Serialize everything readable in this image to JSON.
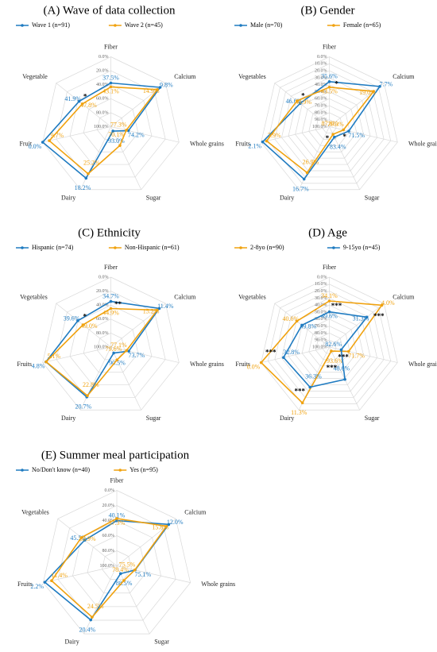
{
  "chart_data": [
    {
      "type": "radar",
      "title": "(A) Wave of data collection",
      "categories": [
        "Fiber",
        "Calcium",
        "Whole grains",
        "Sugar",
        "Dairy",
        "Fruit",
        "Vegetable"
      ],
      "ylim": [
        100,
        0
      ],
      "yticks": [
        {
          "value": 0,
          "label": "0.0%"
        },
        {
          "value": 20,
          "label": "20.0%"
        },
        {
          "value": 40,
          "label": "40.0%"
        },
        {
          "value": 60,
          "label": "60.0%"
        },
        {
          "value": 80,
          "label": "80.0%"
        },
        {
          "value": 100,
          "label": "100.0%"
        }
      ],
      "series": [
        {
          "name": "Wave 1 (n=91)",
          "color": "#1f7bc1",
          "values": [
            37.5,
            9.8,
            74.2,
            93.0,
            18.2,
            0.0,
            41.9
          ],
          "value_labels": [
            "37.5%",
            "9.8%",
            "74.2%",
            "93.0%",
            "18.2%",
            "0.0%",
            "41.9%"
          ]
        },
        {
          "name": "Wave 2 (n=45)",
          "color": "#f0a20f",
          "values": [
            43.1,
            14.9,
            77.3,
            70.1,
            25.2,
            9.7,
            47.8
          ],
          "value_labels": [
            "43.1%",
            "14.9%",
            "77.3%",
            "70.1%",
            "25.2%",
            "9.7%",
            "47.8%"
          ]
        }
      ],
      "significance": [
        null,
        null,
        null,
        null,
        null,
        null,
        "*"
      ]
    },
    {
      "type": "radar",
      "title": "(B) Gender",
      "categories": [
        "Fiber",
        "Calcium",
        "Whole grains",
        "Sugar",
        "Dairy",
        "Fruits",
        "Vegetables"
      ],
      "ylim": [
        100,
        0
      ],
      "yticks": [
        {
          "value": 0,
          "label": "0.0%"
        },
        {
          "value": 10,
          "label": "10.0%"
        },
        {
          "value": 20,
          "label": "20.0%"
        },
        {
          "value": 30,
          "label": "30.0%"
        },
        {
          "value": 40,
          "label": "40.0%"
        },
        {
          "value": 50,
          "label": "50.0%"
        },
        {
          "value": 60,
          "label": "60.0%"
        },
        {
          "value": 70,
          "label": "70.0%"
        },
        {
          "value": 80,
          "label": "80.0%"
        },
        {
          "value": 90,
          "label": "90.0%"
        },
        {
          "value": 100,
          "label": "100.0%"
        }
      ],
      "series": [
        {
          "name": "Male (n=70)",
          "color": "#1f7bc1",
          "values": [
            35.6,
            7.7,
            71.5,
            83.4,
            16.7,
            2.1,
            46.6
          ],
          "value_labels": [
            "35.6%",
            "7.7%",
            "71.5%",
            "83.4%",
            "16.7%",
            "2.1%",
            "46.6%"
          ]
        },
        {
          "name": "Female (n=65)",
          "color": "#f0a20f",
          "values": [
            43.5,
            19.0,
            79.3,
            87.8,
            26.9,
            7.9,
            40.9
          ],
          "value_labels": [
            "43.5%",
            "19.0%",
            "79.3%",
            "87.8%",
            "26.9%",
            "7.9%",
            "40.9%"
          ]
        }
      ],
      "significance": [
        "*",
        null,
        "*",
        "*",
        null,
        null,
        "*"
      ]
    },
    {
      "type": "radar",
      "title": "(C) Ethnicity",
      "categories": [
        "Fiber",
        "Calcium",
        "Whole grains",
        "Sugar",
        "Dairy",
        "Fruits",
        "Vegetables"
      ],
      "ylim": [
        100,
        0
      ],
      "yticks": [
        {
          "value": 0,
          "label": "0.0%"
        },
        {
          "value": 20,
          "label": "20.0%"
        },
        {
          "value": 40,
          "label": "40.0%"
        },
        {
          "value": 60,
          "label": "60.0%"
        },
        {
          "value": 80,
          "label": "80.0%"
        },
        {
          "value": 100,
          "label": "100.0%"
        }
      ],
      "series": [
        {
          "name": "Hispanic (n=74)",
          "color": "#1f7bc1",
          "values": [
            34.7,
            11.4,
            73.7,
            90.5,
            20.7,
            4.8,
            39.6
          ],
          "value_labels": [
            "34.7%",
            "11.4%",
            "73.7%",
            "90.5%",
            "20.7%",
            "4.8%",
            "39.6%"
          ]
        },
        {
          "name": "Non-Hispanic (n=61)",
          "color": "#f0a20f",
          "values": [
            44.9,
            15.2,
            77.1,
            79.6,
            22.8,
            5.1,
            49.0
          ],
          "value_labels": [
            "44.9%",
            "15.2%",
            "77.1%",
            "79.6%",
            "22.8%",
            "5.1%",
            "49.0%"
          ]
        }
      ],
      "significance": [
        "**",
        null,
        null,
        null,
        null,
        null,
        "*"
      ]
    },
    {
      "type": "radar",
      "title": "(D) Age",
      "categories": [
        "Fiber",
        "Calcium",
        "Whole grains",
        "Sugar",
        "Dairy",
        "Fruits",
        "Vegetables"
      ],
      "ylim": [
        100,
        0
      ],
      "yticks": [
        {
          "value": 0,
          "label": "0.0%"
        },
        {
          "value": 10,
          "label": "10.0%"
        },
        {
          "value": 20,
          "label": "20.0%"
        },
        {
          "value": 30,
          "label": "30.0%"
        },
        {
          "value": 40,
          "label": "40.0%"
        },
        {
          "value": 50,
          "label": "50.0%"
        },
        {
          "value": 60,
          "label": "60.0%"
        },
        {
          "value": 70,
          "label": "70.0%"
        },
        {
          "value": 80,
          "label": "80.0%"
        },
        {
          "value": 90,
          "label": "90.0%"
        },
        {
          "value": 100,
          "label": "100.0%"
        }
      ],
      "series": [
        {
          "name": "2-8yo (n=90)",
          "color": "#f0a20f",
          "values": [
            34.1,
            4.0,
            71.7,
            93.6,
            11.3,
            0.0,
            40.6
          ],
          "value_labels": [
            "34.1%",
            "4.0%",
            "71.7%",
            "93.6%",
            "11.3%",
            "0.0%",
            "40.6%"
          ]
        },
        {
          "name": "9-15yo (n=45)",
          "color": "#1f7bc1",
          "values": [
            49.6,
            31.3,
            82.6,
            48.6,
            36.3,
            32.8,
            49.8
          ],
          "value_labels": [
            "49.6%",
            "31.3%",
            "82.6%",
            "48.6%",
            "36.3%",
            "32.8%",
            "49.8%"
          ]
        }
      ],
      "significance": [
        "***",
        "***",
        "***",
        "***",
        "***",
        "***",
        null
      ]
    },
    {
      "type": "radar",
      "title": "(E) Summer meal participation",
      "categories": [
        "Fiber",
        "Calcium",
        "Whole grains",
        "Sugar",
        "Dairy",
        "Fruits",
        "Vegetables"
      ],
      "ylim": [
        100,
        0
      ],
      "yticks": [
        {
          "value": 0,
          "label": "0.0%"
        },
        {
          "value": 20,
          "label": "20.0%"
        },
        {
          "value": 40,
          "label": "40.0%"
        },
        {
          "value": 60,
          "label": "60.0%"
        },
        {
          "value": 80,
          "label": "80.0%"
        },
        {
          "value": 100,
          "label": "100.0%"
        }
      ],
      "series": [
        {
          "name": "No/Don't know (n=40)",
          "color": "#1f7bc1",
          "values": [
            40.1,
            12.0,
            75.1,
            88.5,
            20.4,
            2.2,
            45.5
          ],
          "value_labels": [
            "40.1%",
            "12.0%",
            "75.1%",
            "88.5%",
            "20.4%",
            "2.2%",
            "45.5%"
          ]
        },
        {
          "name": "Yes (n=95)",
          "color": "#f0a20f",
          "values": [
            37.3,
            15.8,
            75.5,
            78.4,
            24.5,
            11.4,
            39.9
          ],
          "value_labels": [
            "37.3%",
            "15.8%",
            "75.5%",
            "78.4%",
            "24.5%",
            "11.4%",
            "39.9%"
          ]
        }
      ],
      "significance": [
        null,
        null,
        null,
        null,
        null,
        null,
        null
      ]
    }
  ]
}
